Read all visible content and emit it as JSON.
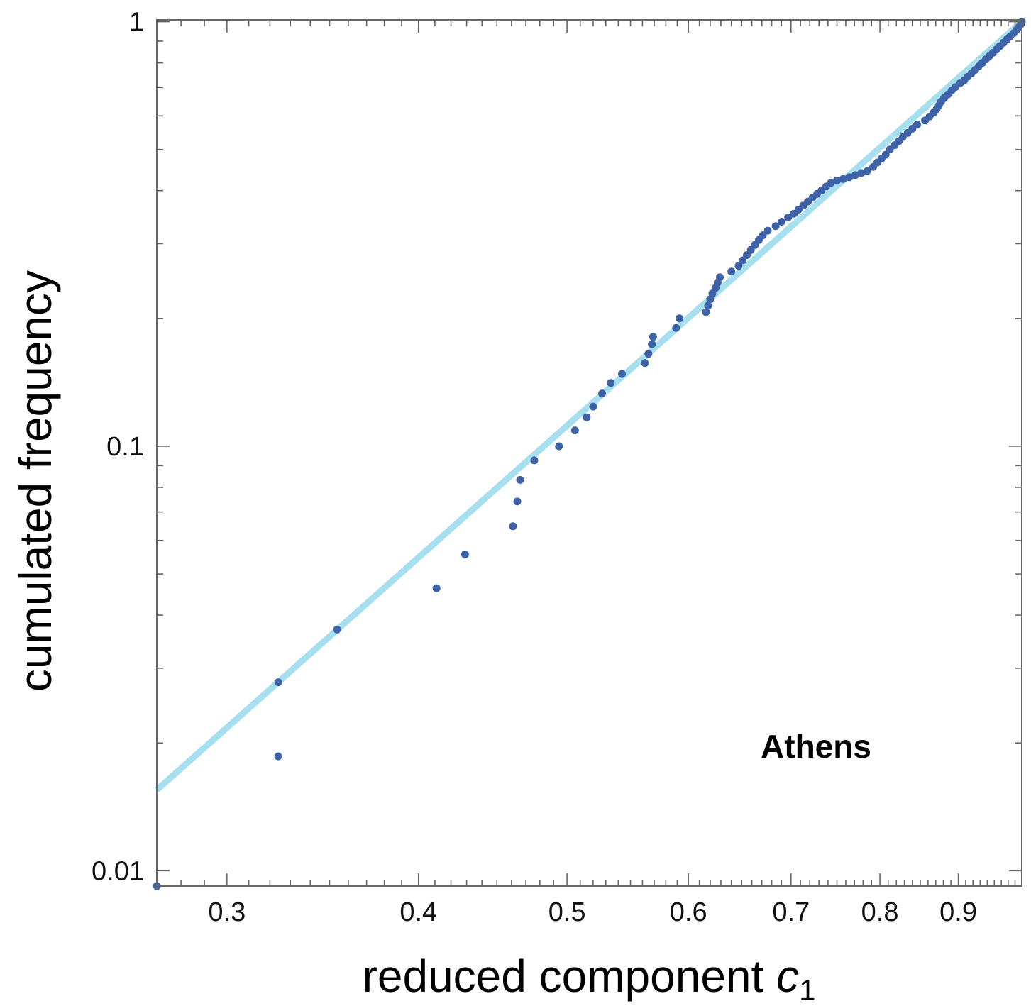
{
  "chart_data": {
    "type": "scatter",
    "xlabel_main": "reduced component ",
    "xlabel_var": "c",
    "xlabel_sub": "1",
    "ylabel": "cumulated frequency",
    "annotation": "Athens",
    "x_scale": "log",
    "y_scale": "log",
    "xlim": [
      0.27,
      0.99
    ],
    "ylim": [
      0.0092,
      1.01
    ],
    "x_ticks": [
      {
        "value": 0.3,
        "label": "0.3"
      },
      {
        "value": 0.4,
        "label": "0.4"
      },
      {
        "value": 0.5,
        "label": "0.5"
      },
      {
        "value": 0.6,
        "label": "0.6"
      },
      {
        "value": 0.7,
        "label": "0.7"
      },
      {
        "value": 0.8,
        "label": "0.8"
      },
      {
        "value": 0.9,
        "label": "0.9"
      }
    ],
    "y_ticks": [
      {
        "value": 0.01,
        "label": "0.01"
      },
      {
        "value": 0.1,
        "label": "0.1"
      },
      {
        "value": 1,
        "label": "1"
      }
    ],
    "grid": false,
    "colors": {
      "points": "#3d62a8",
      "fit_line": "#a6dff0",
      "frame": "#666666"
    },
    "fit_line": {
      "x": [
        0.27,
        0.99
      ],
      "y": [
        0.0155,
        1.0
      ]
    },
    "points": [
      [
        0.27,
        0.0092
      ],
      [
        0.324,
        0.0186
      ],
      [
        0.324,
        0.0278
      ],
      [
        0.354,
        0.037
      ],
      [
        0.411,
        0.0463
      ],
      [
        0.429,
        0.0556
      ],
      [
        0.461,
        0.0648
      ],
      [
        0.464,
        0.0741
      ],
      [
        0.466,
        0.0833
      ],
      [
        0.476,
        0.0926
      ],
      [
        0.494,
        0.1
      ],
      [
        0.506,
        0.109
      ],
      [
        0.515,
        0.117
      ],
      [
        0.52,
        0.124
      ],
      [
        0.527,
        0.133
      ],
      [
        0.534,
        0.141
      ],
      [
        0.543,
        0.148
      ],
      [
        0.562,
        0.157
      ],
      [
        0.565,
        0.165
      ],
      [
        0.568,
        0.174
      ],
      [
        0.569,
        0.181
      ],
      [
        0.589,
        0.19
      ],
      [
        0.592,
        0.2
      ],
      [
        0.616,
        0.207
      ],
      [
        0.618,
        0.214
      ],
      [
        0.62,
        0.222
      ],
      [
        0.622,
        0.229
      ],
      [
        0.625,
        0.236
      ],
      [
        0.627,
        0.243
      ],
      [
        0.629,
        0.25
      ],
      [
        0.64,
        0.258
      ],
      [
        0.647,
        0.266
      ],
      [
        0.651,
        0.274
      ],
      [
        0.655,
        0.282
      ],
      [
        0.659,
        0.29
      ],
      [
        0.663,
        0.298
      ],
      [
        0.667,
        0.306
      ],
      [
        0.671,
        0.314
      ],
      [
        0.676,
        0.322
      ],
      [
        0.684,
        0.33
      ],
      [
        0.69,
        0.338
      ],
      [
        0.697,
        0.346
      ],
      [
        0.703,
        0.353
      ],
      [
        0.708,
        0.361
      ],
      [
        0.713,
        0.369
      ],
      [
        0.718,
        0.377
      ],
      [
        0.723,
        0.385
      ],
      [
        0.728,
        0.393
      ],
      [
        0.733,
        0.401
      ],
      [
        0.738,
        0.409
      ],
      [
        0.743,
        0.417
      ],
      [
        0.75,
        0.422
      ],
      [
        0.757,
        0.426
      ],
      [
        0.764,
        0.43
      ],
      [
        0.771,
        0.435
      ],
      [
        0.778,
        0.44
      ],
      [
        0.785,
        0.445
      ],
      [
        0.792,
        0.455
      ],
      [
        0.797,
        0.466
      ],
      [
        0.802,
        0.476
      ],
      [
        0.807,
        0.486
      ],
      [
        0.812,
        0.5
      ],
      [
        0.818,
        0.512
      ],
      [
        0.823,
        0.523
      ],
      [
        0.828,
        0.535
      ],
      [
        0.834,
        0.547
      ],
      [
        0.84,
        0.56
      ],
      [
        0.846,
        0.572
      ],
      [
        0.856,
        0.585
      ],
      [
        0.862,
        0.598
      ],
      [
        0.867,
        0.61
      ],
      [
        0.871,
        0.622
      ],
      [
        0.874,
        0.635
      ],
      [
        0.877,
        0.648
      ],
      [
        0.881,
        0.661
      ],
      [
        0.886,
        0.674
      ],
      [
        0.891,
        0.688
      ],
      [
        0.896,
        0.701
      ],
      [
        0.902,
        0.715
      ],
      [
        0.908,
        0.728
      ],
      [
        0.913,
        0.742
      ],
      [
        0.918,
        0.756
      ],
      [
        0.923,
        0.77
      ],
      [
        0.928,
        0.785
      ],
      [
        0.933,
        0.8
      ],
      [
        0.938,
        0.815
      ],
      [
        0.943,
        0.83
      ],
      [
        0.948,
        0.845
      ],
      [
        0.953,
        0.86
      ],
      [
        0.958,
        0.876
      ],
      [
        0.963,
        0.892
      ],
      [
        0.968,
        0.908
      ],
      [
        0.973,
        0.924
      ],
      [
        0.978,
        0.94
      ],
      [
        0.982,
        0.956
      ],
      [
        0.986,
        0.972
      ],
      [
        0.989,
        0.988
      ],
      [
        0.99,
        1.0
      ]
    ]
  }
}
